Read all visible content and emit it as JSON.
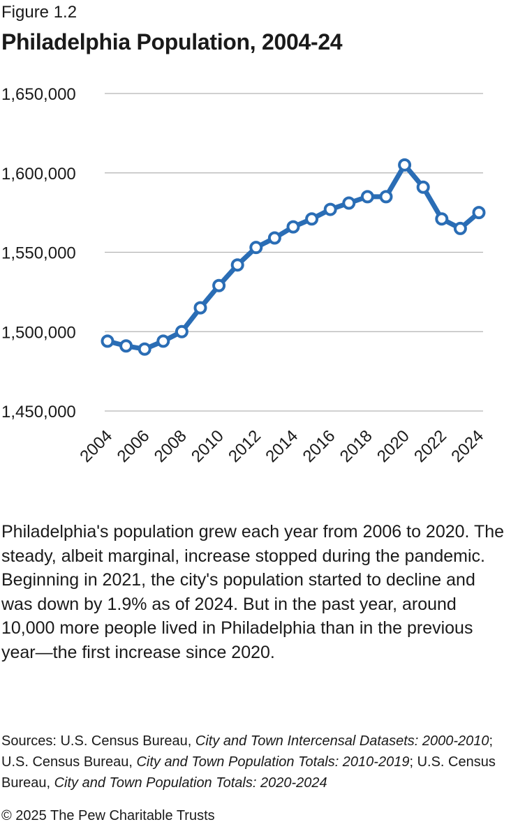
{
  "figure_label": "Figure 1.2",
  "title": "Philadelphia Population, 2004-24",
  "description": "Philadelphia's population grew each year from 2006 to 2020. The steady, albeit marginal, increase stopped during the pandemic. Beginning in 2021, the city's population started to decline and was down by 1.9% as of 2024. But in the past year, around 10,000 more people lived in Philadelphia than in the previous year—the first increase since 2020.",
  "sources": {
    "lead": "Sources: U.S. Census Bureau, ",
    "source1": "City and Town Intercensal Datasets: 2000-2010",
    "sep1": "; U.S. Census Bureau, ",
    "source2": "City and Town Population Totals: 2010-2019",
    "sep2": "; U.S. Census Bureau, ",
    "source3": "City and Town Population Totals: 2020-2024"
  },
  "copyright": "© 2025 The Pew Charitable Trusts",
  "colors": {
    "line": "#2a6db5",
    "grid": "#b3b3b3",
    "marker_fill": "#ffffff"
  },
  "chart_data": {
    "type": "line",
    "title": "Philadelphia Population, 2004-24",
    "xlabel": "",
    "ylabel": "",
    "x": [
      2004,
      2005,
      2006,
      2007,
      2008,
      2009,
      2010,
      2011,
      2012,
      2013,
      2014,
      2015,
      2016,
      2017,
      2018,
      2019,
      2020,
      2021,
      2022,
      2023,
      2024
    ],
    "x_tick_labels": [
      "2004",
      "2006",
      "2008",
      "2010",
      "2012",
      "2014",
      "2016",
      "2018",
      "2020",
      "2022",
      "2024"
    ],
    "series": [
      {
        "name": "Population",
        "values": [
          1494000,
          1491000,
          1489000,
          1494000,
          1500000,
          1515000,
          1529000,
          1542000,
          1553000,
          1559000,
          1566000,
          1571000,
          1577000,
          1581000,
          1585000,
          1585000,
          1605000,
          1591000,
          1571000,
          1565000,
          1575000
        ]
      }
    ],
    "ylim": [
      1450000,
      1650000
    ],
    "y_ticks": [
      1650000,
      1600000,
      1550000,
      1500000,
      1450000
    ],
    "y_tick_labels": [
      "1,650,000",
      "1,600,000",
      "1,550,000",
      "1,500,000",
      "1,450,000"
    ],
    "grid": true
  }
}
